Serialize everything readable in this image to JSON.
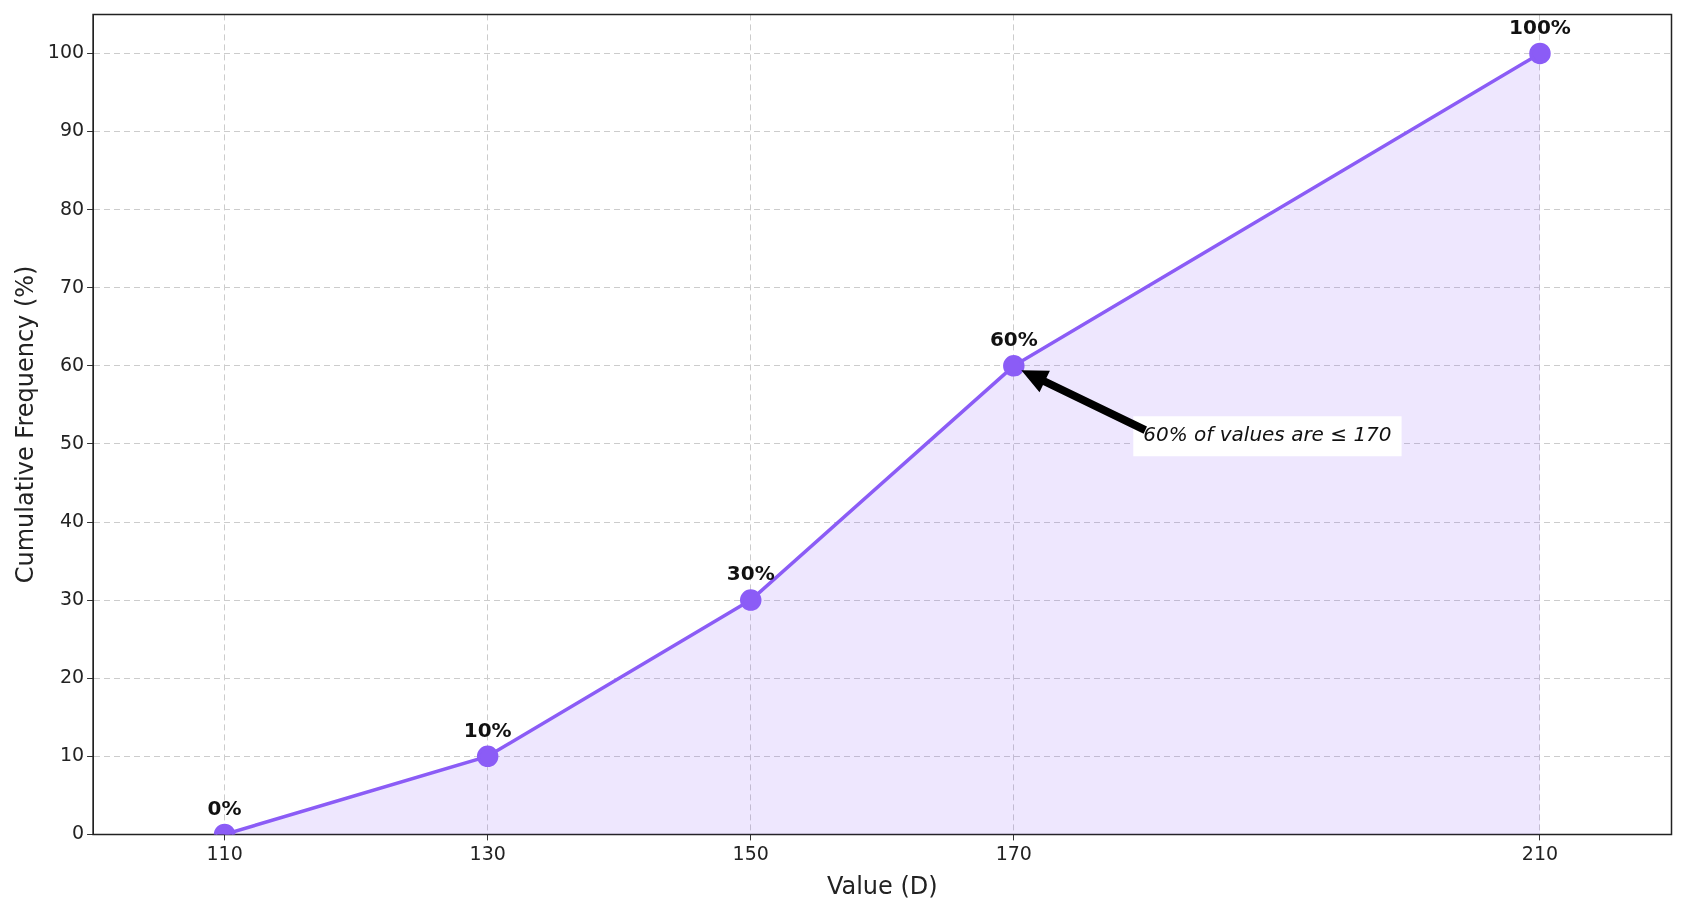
{
  "chart_data": {
    "type": "area",
    "xlabel": "Value (D)",
    "ylabel": "Cumulative Frequency (%)",
    "x": [
      110,
      130,
      150,
      170,
      210
    ],
    "series": [
      {
        "color": "#8b5cf6",
        "values": [
          0,
          10,
          30,
          60,
          100
        ],
        "value_labels": [
          "0%",
          "10%",
          "30%",
          "60%",
          "100%"
        ]
      }
    ],
    "xlim": [
      100,
      220
    ],
    "xticks": [
      110,
      130,
      150,
      170,
      210
    ],
    "ylim": [
      0,
      105
    ],
    "yticks": [
      0,
      10,
      20,
      30,
      40,
      50,
      60,
      70,
      80,
      90,
      100
    ],
    "grid": true,
    "marker": "circle",
    "line_style": "solid",
    "legend": false,
    "annotations": [
      "60% of values are ≤ 170"
    ]
  }
}
